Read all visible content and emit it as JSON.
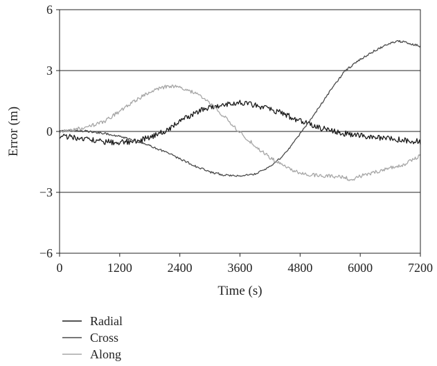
{
  "chart_data": {
    "type": "line",
    "title": "",
    "xlabel": "Time (s)",
    "ylabel": "Error (m)",
    "xlim": [
      0,
      7200
    ],
    "ylim": [
      -6,
      6
    ],
    "xticks": [
      0,
      1200,
      2400,
      3600,
      4800,
      6000,
      7200
    ],
    "yticks": [
      -6,
      -3,
      0,
      3,
      6
    ],
    "xtick_labels": [
      "0",
      "1200",
      "2400",
      "3600",
      "4800",
      "6000",
      "7200"
    ],
    "ytick_labels": [
      "−6",
      "−3",
      "0",
      "3",
      "6"
    ],
    "grid": "horizontal",
    "legend_position": "bottom-left",
    "series": [
      {
        "name": "Radial",
        "color": "#1a1a1a",
        "x": [
          0,
          300,
          600,
          900,
          1200,
          1500,
          1800,
          2100,
          2400,
          2700,
          3000,
          3300,
          3600,
          3900,
          4200,
          4500,
          4800,
          5100,
          5400,
          5700,
          6000,
          6300,
          6600,
          6900,
          7200
        ],
        "y": [
          -0.2,
          -0.3,
          -0.4,
          -0.5,
          -0.55,
          -0.5,
          -0.3,
          0.0,
          0.5,
          0.9,
          1.2,
          1.35,
          1.4,
          1.3,
          1.1,
          0.85,
          0.5,
          0.25,
          0.05,
          -0.1,
          -0.2,
          -0.3,
          -0.35,
          -0.45,
          -0.5
        ]
      },
      {
        "name": "Cross",
        "color": "#4a4a4a",
        "x": [
          0,
          300,
          600,
          900,
          1200,
          1500,
          1800,
          2100,
          2400,
          2700,
          3000,
          3300,
          3600,
          3900,
          4200,
          4500,
          4800,
          5100,
          5400,
          5700,
          6000,
          6300,
          6600,
          6750,
          6900,
          7050,
          7200
        ],
        "y": [
          0.05,
          0.05,
          0.0,
          -0.1,
          -0.25,
          -0.45,
          -0.7,
          -1.0,
          -1.35,
          -1.7,
          -2.0,
          -2.15,
          -2.2,
          -2.1,
          -1.75,
          -1.1,
          -0.1,
          0.9,
          2.0,
          3.0,
          3.55,
          4.0,
          4.35,
          4.45,
          4.4,
          4.3,
          4.2
        ]
      },
      {
        "name": "Along",
        "color": "#a6a6a6",
        "x": [
          0,
          300,
          600,
          900,
          1200,
          1500,
          1800,
          2100,
          2400,
          2700,
          3000,
          3300,
          3600,
          3900,
          4200,
          4500,
          4800,
          5100,
          5400,
          5700,
          5800,
          6000,
          6300,
          6600,
          6900,
          7200
        ],
        "y": [
          0.0,
          0.1,
          0.25,
          0.5,
          1.0,
          1.5,
          1.95,
          2.2,
          2.2,
          1.9,
          1.4,
          0.7,
          -0.05,
          -0.7,
          -1.3,
          -1.75,
          -2.05,
          -2.15,
          -2.2,
          -2.25,
          -2.4,
          -2.2,
          -2.0,
          -1.8,
          -1.6,
          -1.2
        ]
      }
    ]
  }
}
